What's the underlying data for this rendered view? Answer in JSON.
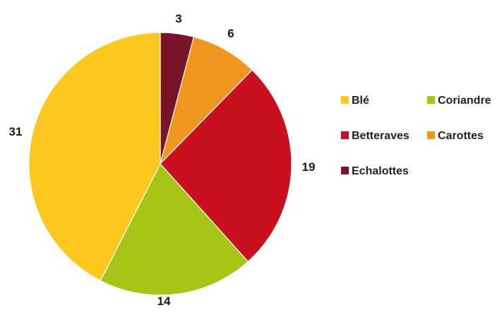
{
  "chart_data": {
    "type": "pie",
    "title": "",
    "legend_position": "right",
    "slices": [
      {
        "label": "Echalottes",
        "value": 3,
        "color": "#7a1428"
      },
      {
        "label": "Carottes",
        "value": 6,
        "color": "#f0961e"
      },
      {
        "label": "Betteraves",
        "value": 19,
        "color": "#c8101e"
      },
      {
        "label": "Coriandre",
        "value": 14,
        "color": "#a8c414"
      },
      {
        "label": "Blé",
        "value": 31,
        "color": "#fcc81e"
      }
    ],
    "legend": [
      {
        "label": "Blé",
        "color": "#fcc81e"
      },
      {
        "label": "Coriandre",
        "color": "#a8c414"
      },
      {
        "label": "Betteraves",
        "color": "#c8101e"
      },
      {
        "label": "Carottes",
        "color": "#f0961e"
      },
      {
        "label": "Echalottes",
        "color": "#7a1428"
      }
    ]
  }
}
